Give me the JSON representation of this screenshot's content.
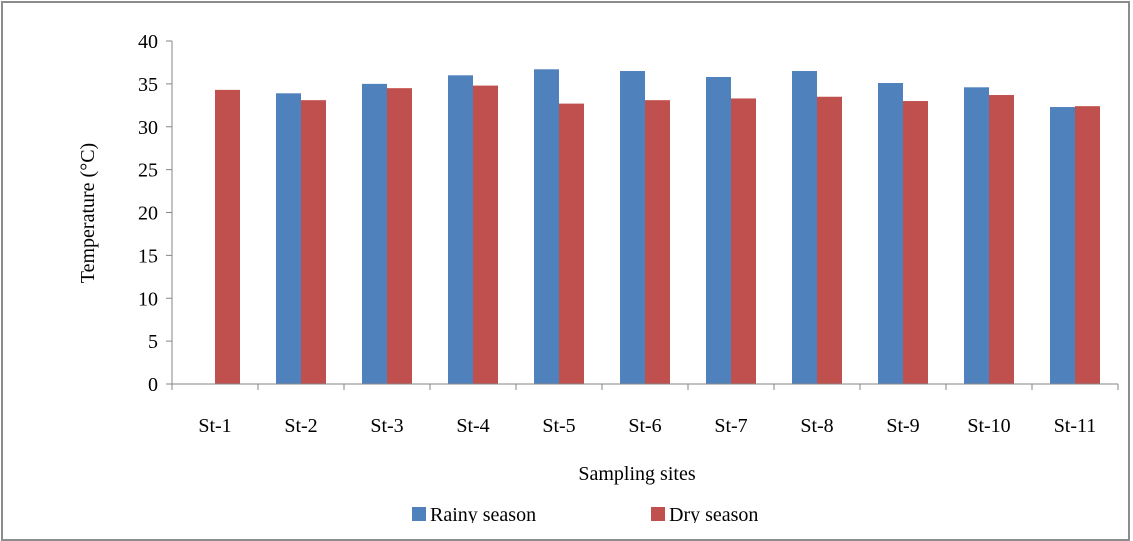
{
  "chart_data": {
    "type": "bar",
    "title": "",
    "xlabel": "Sampling sites",
    "ylabel": "Temperature (°C)",
    "ylim": [
      0,
      40
    ],
    "yticks": [
      0,
      5,
      10,
      15,
      20,
      25,
      30,
      35,
      40
    ],
    "grid": false,
    "legend_position": "bottom",
    "categories": [
      "St-1",
      "St-2",
      "St-3",
      "St-4",
      "St-5",
      "St-6",
      "St-7",
      "St-8",
      "St-9",
      "St-10",
      "St-11"
    ],
    "series": [
      {
        "name": "Rainy season",
        "color": "#4f81bd",
        "values": [
          null,
          33.9,
          35.0,
          36.0,
          36.7,
          36.5,
          35.8,
          36.5,
          35.1,
          34.6,
          32.3
        ]
      },
      {
        "name": "Dry season",
        "color": "#c0504d",
        "values": [
          34.3,
          33.1,
          34.5,
          34.8,
          32.7,
          33.1,
          33.3,
          33.5,
          33.0,
          33.7,
          32.4
        ]
      }
    ]
  }
}
